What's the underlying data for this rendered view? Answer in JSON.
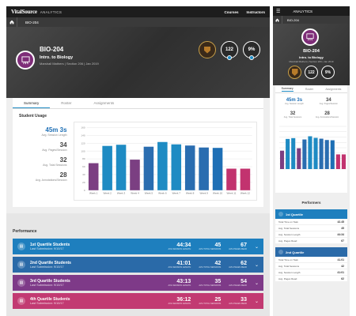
{
  "brand": {
    "logo": "VitalSource",
    "suffix": "ANALYTICS"
  },
  "nav": {
    "courses": "Courses",
    "instructors": "Instructors"
  },
  "breadcrumb": {
    "course": "BIO-204"
  },
  "course": {
    "code": "BIO-204",
    "name": "Intro. to Biology",
    "meta": "Marshall Mathers  |  Section 206  |  Jan 2019"
  },
  "hero_stats": {
    "students": "122",
    "percent": "9%"
  },
  "tabs": {
    "summary": "Summary",
    "roster": "Roster",
    "assignments": "Assignments"
  },
  "usage": {
    "title": "Student Usage",
    "session_length": {
      "value": "45m 3s",
      "label": "Avg. Session Length"
    },
    "pages": {
      "value": "34",
      "label": "Avg. Pages/Session"
    },
    "total_sessions": {
      "value": "32",
      "label": "Avg. Total Sessions"
    },
    "annotations": {
      "value": "28",
      "label": "Avg. Annotations/Session"
    }
  },
  "chart_data": {
    "type": "bar",
    "categories": [
      "Week 1",
      "Week 2",
      "Week 3",
      "Week 4",
      "Week 5",
      "Week 6",
      "Week 7",
      "Week 8",
      "Week 9",
      "Week 10",
      "Week 11",
      "Week 12"
    ],
    "values": [
      69,
      113,
      116,
      78,
      111,
      123,
      117,
      114,
      109,
      108,
      55,
      55
    ],
    "colors": [
      "#7b3f82",
      "#1e8bc3",
      "#1e8bc3",
      "#7b3f82",
      "#2a6db0",
      "#1e8bc3",
      "#1e8bc3",
      "#2a6db0",
      "#2a6db0",
      "#1e6fb5",
      "#c2336f",
      "#c2336f"
    ],
    "ylim": [
      0,
      160
    ],
    "yticks": [
      0,
      20,
      40,
      60,
      80,
      100,
      120,
      140,
      160
    ],
    "grid": true
  },
  "performance": {
    "title": "Performance",
    "quartiles": [
      {
        "name": "1st Quartile Students",
        "sub": "Last Submission: 9/10/17",
        "session": "44:34",
        "sessions": "45",
        "pages": "67",
        "color": "#1e7fbe"
      },
      {
        "name": "2nd Quartile Students",
        "sub": "Last Submission: 9/10/17",
        "session": "41:01",
        "sessions": "42",
        "pages": "62",
        "color": "#2a6aa8"
      },
      {
        "name": "3rd Quartile Students",
        "sub": "Last Submission: 9/10/17",
        "session": "43:13",
        "sessions": "35",
        "pages": "54",
        "color": "#7e3a88"
      },
      {
        "name": "4th Quartile Students",
        "sub": "Last Submission: 9/10/17",
        "session": "36:12",
        "sessions": "25",
        "pages": "33",
        "color": "#c23a72"
      }
    ],
    "labels": {
      "session": "AVG SESSION LENGTH",
      "sessions": "AVG TOTAL SESSIONS",
      "pages": "AVG PAGES READ"
    }
  },
  "mobile": {
    "title": "ANALYTICS",
    "usage": {
      "session": "45m 3s",
      "pages": "34",
      "sessions": "32",
      "annotations": "28",
      "session_l": "Avg. Session Length",
      "pages_l": "Avg. Pages/Session",
      "sessions_l": "Avg. Total Sessions",
      "annotations_l": "Avg. Annotations/Session"
    },
    "performers_title": "Performers",
    "q1": {
      "name": "1st Quartile",
      "rows": [
        [
          "Total Time on Task",
          "42.45"
        ],
        [
          "Avg. Total Sessions",
          "45"
        ],
        [
          "Avg. Session Length",
          "44:34"
        ],
        [
          "Avg. Pages Read",
          "67"
        ]
      ]
    },
    "q2": {
      "name": "2nd Quartile",
      "rows": [
        [
          "Total Time on Task",
          "41.01"
        ],
        [
          "Avg. Total Sessions",
          "42"
        ],
        [
          "Avg. Session Length",
          "41:01"
        ],
        [
          "Avg. Pages Read",
          "62"
        ]
      ]
    }
  }
}
